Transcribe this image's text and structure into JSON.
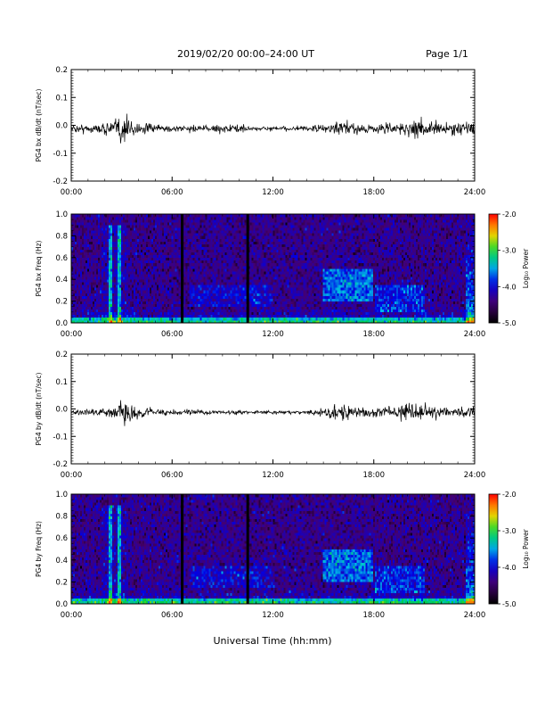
{
  "header": {
    "title": "2019/02/20  00:00–24:00 UT",
    "page": "Page 1/1"
  },
  "footer": {
    "xlabel": "Universal Time (hh:mm)"
  },
  "colors": {
    "background": "#ffffff",
    "axis": "#000000",
    "trace": "#000000"
  },
  "chart_data": [
    {
      "type": "line",
      "ylabel": "PG4 bx dB/dt (nT/sec)",
      "xlim": [
        0,
        24
      ],
      "ylim": [
        -0.2,
        0.2
      ],
      "xticks": [
        "00:00",
        "06:00",
        "12:00",
        "18:00",
        "24:00"
      ],
      "yticks": [
        "-0.2",
        "-0.1",
        "0.0",
        "0.1",
        "0.2"
      ],
      "series": [
        {
          "x": [
            0,
            1,
            2,
            2.8,
            3.0,
            3.3,
            4,
            5,
            6,
            7,
            8,
            9,
            10,
            11,
            12,
            13,
            14,
            15,
            15.5,
            16,
            17,
            18,
            19,
            20,
            20.5,
            21,
            22,
            23,
            24
          ],
          "amplitude": [
            0.01,
            0.012,
            0.015,
            0.03,
            0.05,
            0.035,
            0.02,
            0.01,
            0.01,
            0.012,
            0.008,
            0.01,
            0.012,
            0.006,
            0.006,
            0.006,
            0.007,
            0.01,
            0.018,
            0.02,
            0.015,
            0.012,
            0.015,
            0.02,
            0.035,
            0.02,
            0.018,
            0.016,
            0.02
          ]
        }
      ]
    },
    {
      "type": "heatmap",
      "ylabel": "PG4 bx Freq (Hz)",
      "xlim": [
        0,
        24
      ],
      "ylim": [
        0,
        1.0
      ],
      "xticks": [
        "00:00",
        "06:00",
        "12:00",
        "18:00",
        "24:00"
      ],
      "yticks": [
        "0.0",
        "0.2",
        "0.4",
        "0.6",
        "0.8",
        "1.0"
      ],
      "colorbar": {
        "label": "Log₁₀ Power",
        "range": [
          -5.0,
          -2.0
        ],
        "ticks": [
          "-2.0",
          "-3.0",
          "-4.0",
          "-5.0"
        ]
      },
      "data_gaps_hours": [
        6.6,
        10.5
      ]
    },
    {
      "type": "line",
      "ylabel": "PG4 by dB/dt (nT/sec)",
      "xlim": [
        0,
        24
      ],
      "ylim": [
        -0.2,
        0.2
      ],
      "xticks": [
        "00:00",
        "06:00",
        "12:00",
        "18:00",
        "24:00"
      ],
      "yticks": [
        "-0.2",
        "-0.1",
        "0.0",
        "0.1",
        "0.2"
      ],
      "series": [
        {
          "x": [
            0,
            1,
            2,
            2.8,
            3.0,
            3.3,
            4,
            5,
            6,
            7,
            8,
            9,
            10,
            11,
            12,
            13,
            14,
            15,
            15.5,
            16,
            17,
            18,
            19,
            20,
            20.5,
            21,
            22,
            23,
            24
          ],
          "amplitude": [
            0.008,
            0.01,
            0.012,
            0.025,
            0.045,
            0.03,
            0.015,
            0.008,
            0.008,
            0.01,
            0.006,
            0.006,
            0.008,
            0.005,
            0.005,
            0.005,
            0.006,
            0.01,
            0.02,
            0.022,
            0.015,
            0.012,
            0.016,
            0.022,
            0.03,
            0.02,
            0.016,
            0.015,
            0.018
          ]
        }
      ]
    },
    {
      "type": "heatmap",
      "ylabel": "PG4 by Freq (Hz)",
      "xlim": [
        0,
        24
      ],
      "ylim": [
        0,
        1.0
      ],
      "xticks": [
        "00:00",
        "06:00",
        "12:00",
        "18:00",
        "24:00"
      ],
      "yticks": [
        "0.0",
        "0.2",
        "0.4",
        "0.6",
        "0.8",
        "1.0"
      ],
      "colorbar": {
        "label": "Log₁₀ Power",
        "range": [
          -5.0,
          -2.0
        ],
        "ticks": [
          "-2.0",
          "-3.0",
          "-4.0",
          "-5.0"
        ]
      },
      "data_gaps_hours": [
        6.6,
        10.5
      ]
    }
  ]
}
